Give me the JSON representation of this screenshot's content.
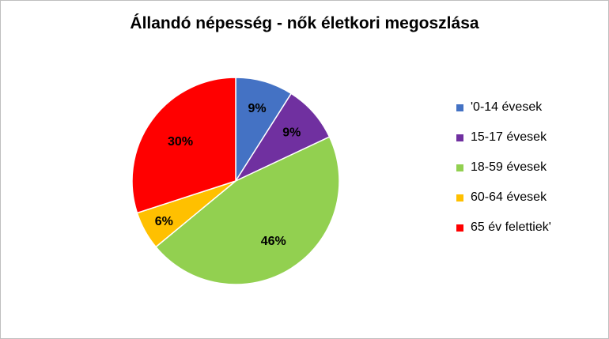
{
  "chart_data": {
    "type": "pie",
    "title": "Állandó népesség - nők életkori megoszlása",
    "categories": [
      "'0-14 évesek",
      "15-17 évesek",
      "18-59 évesek",
      "60-64 évesek",
      "65 év felettiek'"
    ],
    "values": [
      9,
      9,
      46,
      6,
      30
    ],
    "data_labels": [
      "9%",
      "9%",
      "46%",
      "6%",
      "30%"
    ],
    "colors": [
      "#4472C4",
      "#7030A0",
      "#92D050",
      "#FFC000",
      "#FF0000"
    ],
    "legend_position": "right",
    "start_angle": "12 o'clock",
    "direction": "clockwise"
  }
}
